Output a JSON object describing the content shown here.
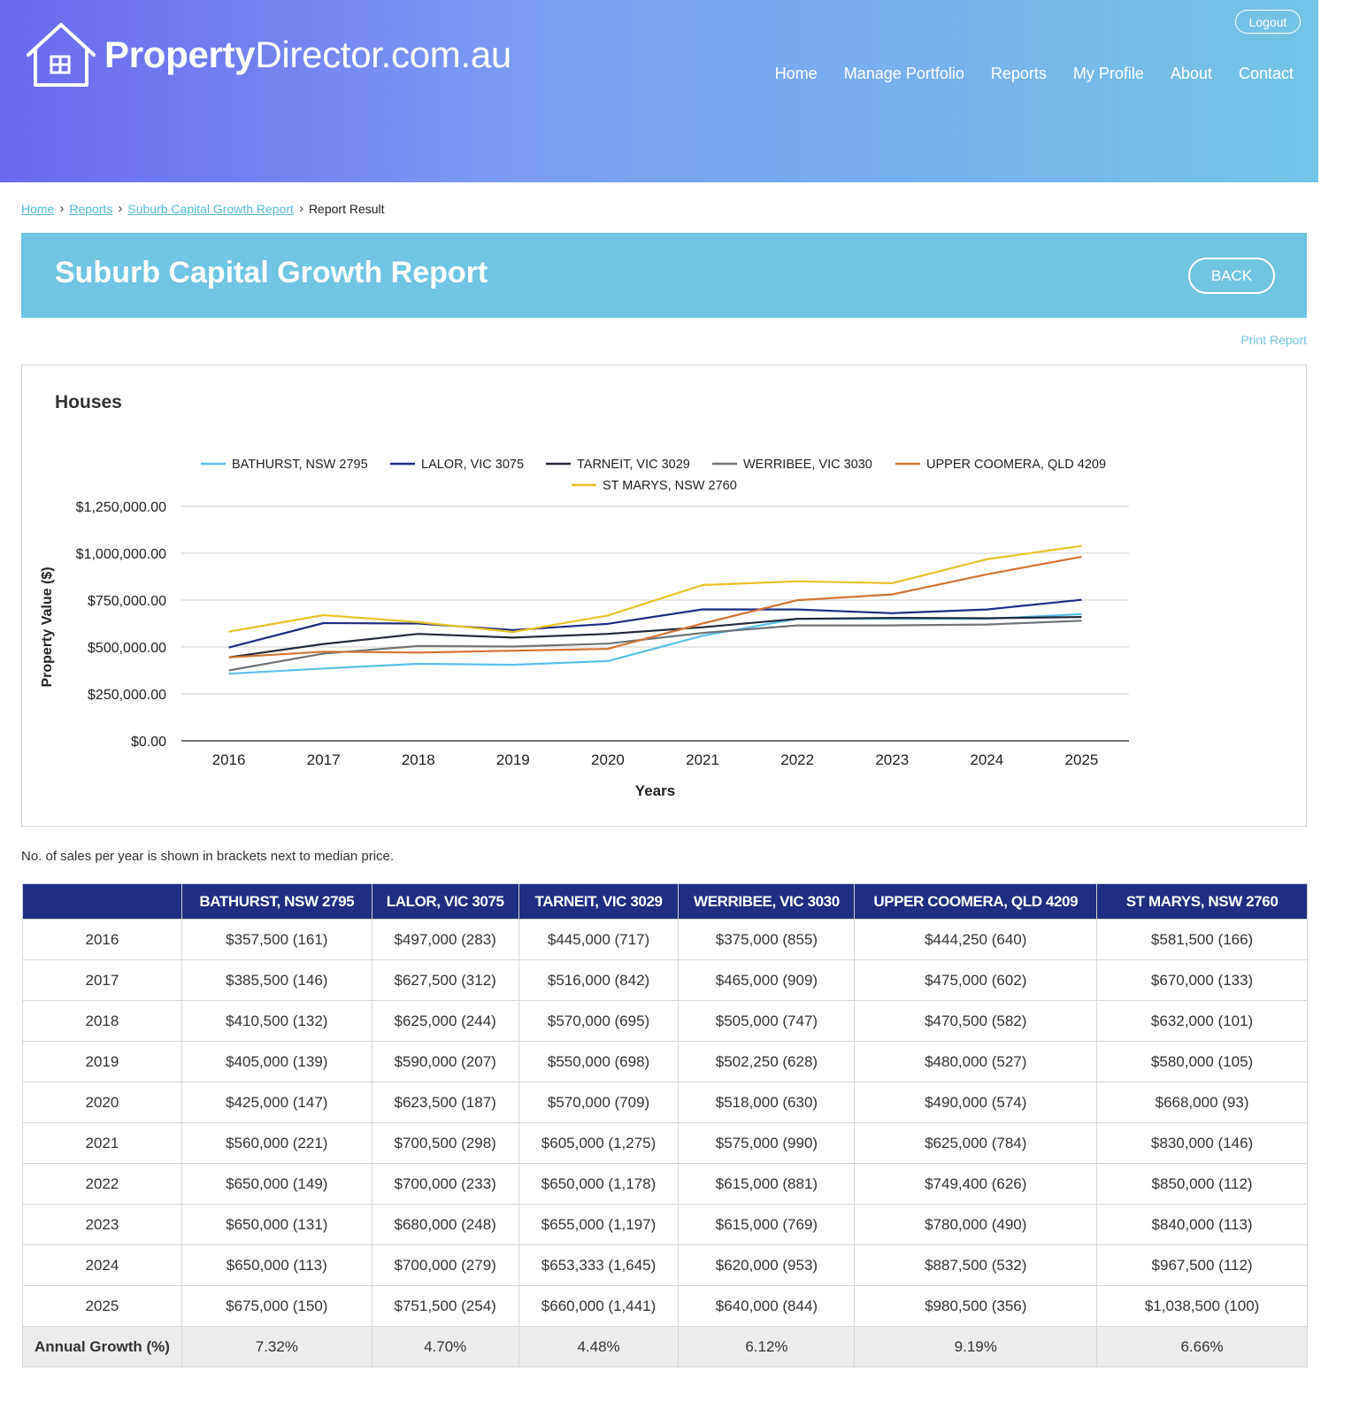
{
  "header": {
    "logo_bold": "Property",
    "logo_rest": "Director.com.au",
    "logout": "Logout",
    "nav": [
      "Home",
      "Manage Portfolio",
      "Reports",
      "My Profile",
      "About",
      "Contact"
    ]
  },
  "breadcrumb": {
    "items": [
      "Home",
      "Reports",
      "Suburb Capital Growth Report"
    ],
    "current": "Report Result"
  },
  "page": {
    "title": "Suburb Capital Growth Report",
    "back": "BACK",
    "print": "Print Report",
    "note": "No. of sales per year is shown in brackets next to median price."
  },
  "chart_data": {
    "type": "line",
    "title": "Houses",
    "xlabel": "Years",
    "ylabel": "Property Value ($)",
    "x": [
      "2016",
      "2017",
      "2018",
      "2019",
      "2020",
      "2021",
      "2022",
      "2023",
      "2024",
      "2025"
    ],
    "ylim": [
      0,
      1250000
    ],
    "yticks": [
      "$0.00",
      "$250,000.00",
      "$500,000.00",
      "$750,000.00",
      "$1,000,000.00",
      "$1,250,000.00"
    ],
    "grid": true,
    "legend": "top",
    "series": [
      {
        "name": "BATHURST, NSW 2795",
        "color": "#5cc0e6",
        "values": [
          357500,
          385500,
          410500,
          405000,
          425000,
          560000,
          650000,
          650000,
          650000,
          675000
        ]
      },
      {
        "name": "LALOR, VIC 3075",
        "color": "#1f2d82",
        "values": [
          497000,
          627500,
          625000,
          590000,
          623500,
          700500,
          700000,
          680000,
          700000,
          751500
        ]
      },
      {
        "name": "TARNEIT, VIC 3029",
        "color": "#232a3a",
        "values": [
          445000,
          516000,
          570000,
          550000,
          570000,
          605000,
          650000,
          655000,
          653333,
          660000
        ]
      },
      {
        "name": "WERRIBEE, VIC 3030",
        "color": "#6e7478",
        "values": [
          375000,
          465000,
          505000,
          502250,
          518000,
          575000,
          615000,
          615000,
          620000,
          640000
        ]
      },
      {
        "name": "UPPER COOMERA, QLD 4209",
        "color": "#d27535",
        "values": [
          444250,
          475000,
          470500,
          480000,
          490000,
          625000,
          749400,
          780000,
          887500,
          980500
        ]
      },
      {
        "name": "ST MARYS, NSW 2760",
        "color": "#e6c42a",
        "values": [
          581500,
          670000,
          632000,
          580000,
          668000,
          830000,
          850000,
          840000,
          967500,
          1038500
        ]
      }
    ]
  },
  "table": {
    "headers": [
      "",
      "BATHURST, NSW 2795",
      "LALOR, VIC 3075",
      "TARNEIT, VIC 3029",
      "WERRIBEE, VIC 3030",
      "UPPER COOMERA, QLD 4209",
      "ST MARYS, NSW 2760"
    ],
    "rows": [
      [
        "2016",
        "$357,500 (161)",
        "$497,000 (283)",
        "$445,000 (717)",
        "$375,000 (855)",
        "$444,250 (640)",
        "$581,500 (166)"
      ],
      [
        "2017",
        "$385,500 (146)",
        "$627,500 (312)",
        "$516,000 (842)",
        "$465,000 (909)",
        "$475,000 (602)",
        "$670,000 (133)"
      ],
      [
        "2018",
        "$410,500 (132)",
        "$625,000 (244)",
        "$570,000 (695)",
        "$505,000 (747)",
        "$470,500 (582)",
        "$632,000 (101)"
      ],
      [
        "2019",
        "$405,000 (139)",
        "$590,000 (207)",
        "$550,000 (698)",
        "$502,250 (628)",
        "$480,000 (527)",
        "$580,000 (105)"
      ],
      [
        "2020",
        "$425,000 (147)",
        "$623,500 (187)",
        "$570,000 (709)",
        "$518,000 (630)",
        "$490,000 (574)",
        "$668,000 (93)"
      ],
      [
        "2021",
        "$560,000 (221)",
        "$700,500 (298)",
        "$605,000 (1,275)",
        "$575,000 (990)",
        "$625,000 (784)",
        "$830,000 (146)"
      ],
      [
        "2022",
        "$650,000 (149)",
        "$700,000 (233)",
        "$650,000 (1,178)",
        "$615,000 (881)",
        "$749,400 (626)",
        "$850,000 (112)"
      ],
      [
        "2023",
        "$650,000 (131)",
        "$680,000 (248)",
        "$655,000 (1,197)",
        "$615,000 (769)",
        "$780,000 (490)",
        "$840,000 (113)"
      ],
      [
        "2024",
        "$650,000 (113)",
        "$700,000 (279)",
        "$653,333 (1,645)",
        "$620,000 (953)",
        "$887,500 (532)",
        "$967,500 (112)"
      ],
      [
        "2025",
        "$675,000 (150)",
        "$751,500 (254)",
        "$660,000 (1,441)",
        "$640,000 (844)",
        "$980,500 (356)",
        "$1,038,500 (100)"
      ]
    ],
    "growth": [
      "Annual Growth (%)",
      "7.32%",
      "4.70%",
      "4.48%",
      "6.12%",
      "9.19%",
      "6.66%"
    ]
  }
}
